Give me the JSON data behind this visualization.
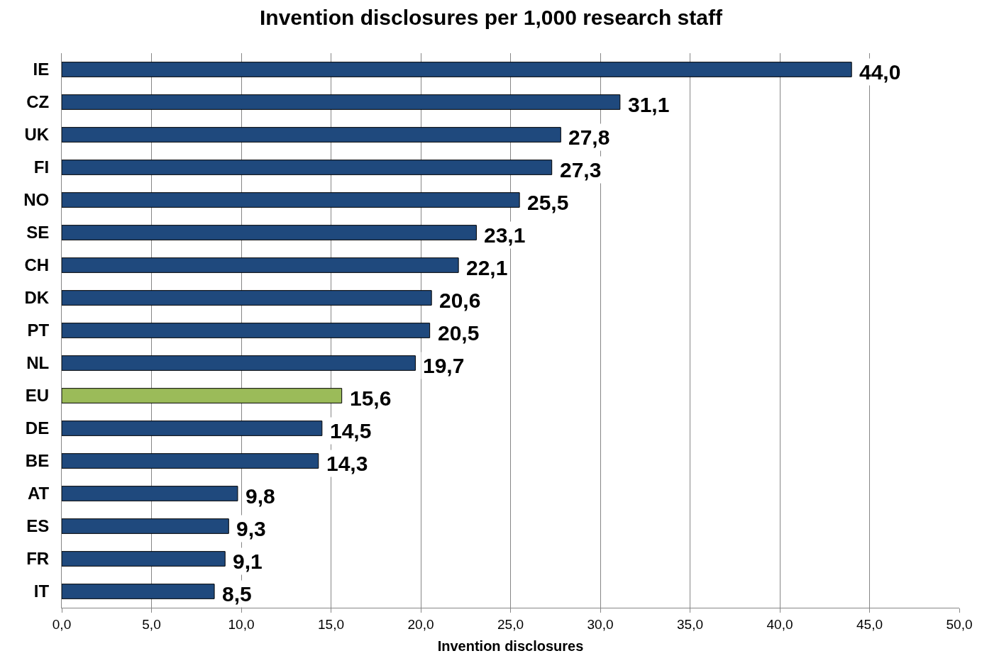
{
  "chart_data": {
    "type": "bar",
    "orientation": "horizontal",
    "title": "Invention disclosures per 1,000 research staff",
    "xlabel": "Invention disclosures",
    "categories": [
      "IE",
      "CZ",
      "UK",
      "FI",
      "NO",
      "SE",
      "CH",
      "DK",
      "PT",
      "NL",
      "EU",
      "DE",
      "BE",
      "AT",
      "ES",
      "FR",
      "IT"
    ],
    "values": [
      44.0,
      31.1,
      27.8,
      27.3,
      25.5,
      23.1,
      22.1,
      20.6,
      20.5,
      19.7,
      15.6,
      14.5,
      14.3,
      9.8,
      9.3,
      9.1,
      8.5
    ],
    "colors": [
      "#1f497d",
      "#1f497d",
      "#1f497d",
      "#1f497d",
      "#1f497d",
      "#1f497d",
      "#1f497d",
      "#1f497d",
      "#1f497d",
      "#1f497d",
      "#9bbb59",
      "#1f497d",
      "#1f497d",
      "#1f497d",
      "#1f497d",
      "#1f497d",
      "#1f497d"
    ],
    "value_labels": [
      "44,0",
      "31,1",
      "27,8",
      "27,3",
      "25,5",
      "23,1",
      "22,1",
      "20,6",
      "20,5",
      "19,7",
      "15,6",
      "14,5",
      "14,3",
      "9,8",
      "9,3",
      "9,1",
      "8,5"
    ],
    "xlim": [
      0,
      50
    ],
    "xticks": [
      {
        "value": 0,
        "label": "0,0"
      },
      {
        "value": 5,
        "label": "5,0"
      },
      {
        "value": 10,
        "label": "10,0"
      },
      {
        "value": 15,
        "label": "15,0"
      },
      {
        "value": 20,
        "label": "20,0"
      },
      {
        "value": 25,
        "label": "25,0"
      },
      {
        "value": 30,
        "label": "30,0"
      },
      {
        "value": 35,
        "label": "35,0"
      },
      {
        "value": 40,
        "label": "40,0"
      },
      {
        "value": 45,
        "label": "45,0"
      },
      {
        "value": 50,
        "label": "50,0"
      }
    ],
    "grid": "x"
  }
}
